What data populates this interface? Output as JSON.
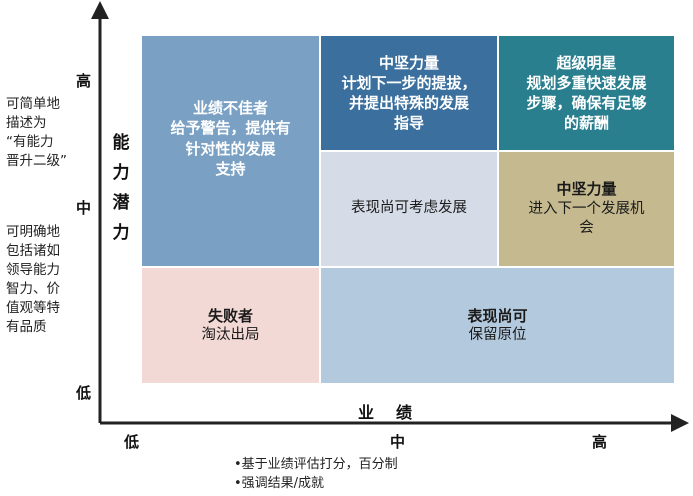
{
  "y_axis": {
    "label_chars": [
      "能",
      "力",
      "潜",
      "力"
    ],
    "ticks": {
      "high": "高",
      "mid": "中",
      "low": "低"
    },
    "note_top": [
      "可简单地",
      "描述为",
      "“有能力",
      "晋升二级”"
    ],
    "note_bottom": [
      "可明确地",
      "包括诸如",
      "领导能力",
      "智力、价",
      "值观等特",
      "有品质"
    ]
  },
  "x_axis": {
    "label": "业绩",
    "ticks": {
      "low": "低",
      "mid": "中",
      "high": "高"
    },
    "notes": [
      "•基于业绩评估打分，百分制",
      "•强调结果/成就"
    ]
  },
  "cells": {
    "top_left": {
      "title": "业绩不佳者",
      "body": [
        "给予警告，提供有",
        "针对性的发展",
        "支持"
      ]
    },
    "top_mid": {
      "title": "中坚力量",
      "body": [
        "计划下一步的提拔，",
        "并提出特殊的发展",
        "指导"
      ]
    },
    "top_right": {
      "title": "超级明星",
      "body": [
        "规划多重快速发展",
        "步骤，确保有足够",
        "的薪酬"
      ]
    },
    "mid_mid": {
      "title": "",
      "body": [
        "表现尚可考虑发展"
      ]
    },
    "mid_right": {
      "title": "中坚力量",
      "body": [
        "进入下一个发展机",
        "会"
      ]
    },
    "bottom_left": {
      "title": "失败者",
      "body": [
        "淘汰出局"
      ]
    },
    "bottom_right": {
      "title": "表现尚可",
      "body": [
        "保留原位"
      ]
    }
  },
  "colors": {
    "steel_blue": "#7aa0c4",
    "navy_blue": "#3a6f9e",
    "teal": "#2a7f8f",
    "light_gray_blue": "#d6dce7",
    "tan": "#c5b98f",
    "light_pink": "#f2d9d5",
    "light_blue": "#b3c9dd",
    "axis": "#222222"
  }
}
